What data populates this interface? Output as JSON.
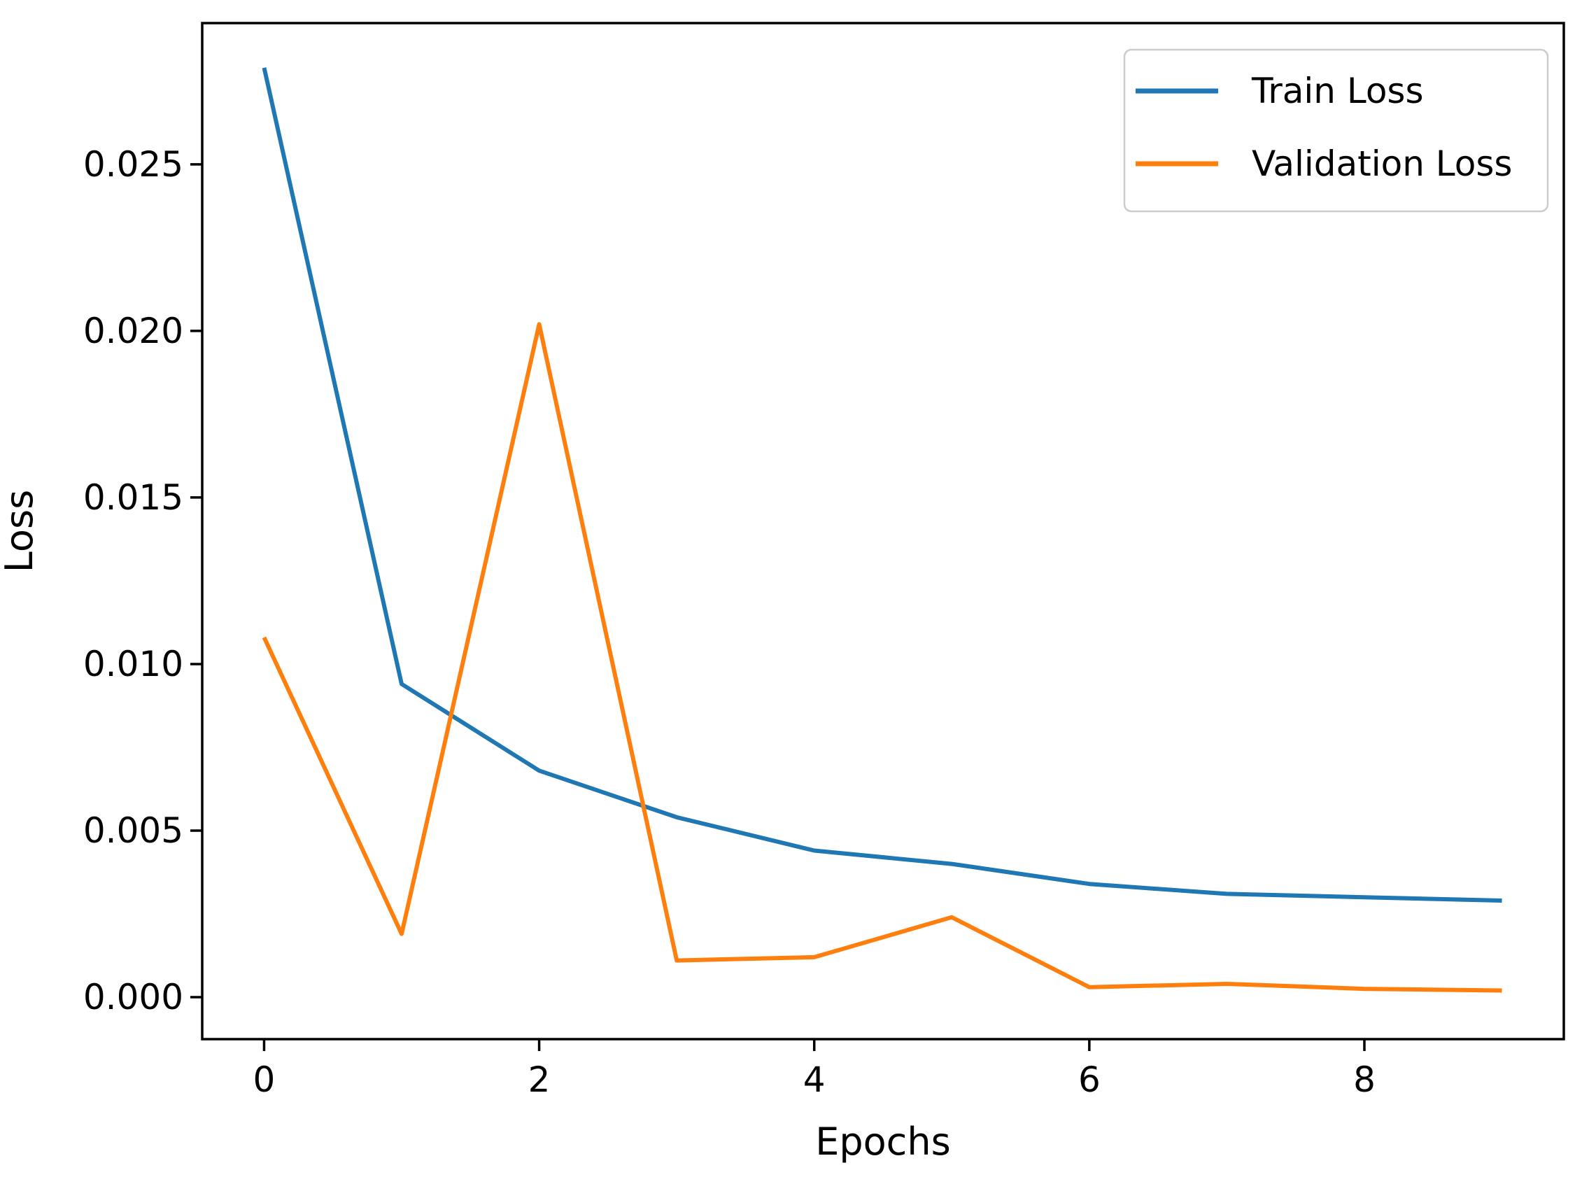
{
  "figure": {
    "background": "#ffffff"
  },
  "chart_data": {
    "type": "line",
    "title": "",
    "xlabel": "Epochs",
    "ylabel": "Loss",
    "x": [
      0,
      1,
      2,
      3,
      4,
      5,
      6,
      7,
      8,
      9
    ],
    "series": [
      {
        "name": "Train Loss",
        "color": "#1f77b4",
        "values": [
          0.0279,
          0.0094,
          0.0068,
          0.0054,
          0.0044,
          0.004,
          0.0034,
          0.0031,
          0.003,
          0.0029
        ]
      },
      {
        "name": "Validation Loss",
        "color": "#ff7f0e",
        "values": [
          0.0108,
          0.0019,
          0.0202,
          0.0011,
          0.0012,
          0.0024,
          0.0003,
          0.0004,
          0.00025,
          0.0002
        ]
      }
    ],
    "xlim": [
      -0.45,
      9.45
    ],
    "ylim": [
      -0.00126,
      0.02924
    ],
    "x_ticks": [
      0,
      2,
      4,
      6,
      8
    ],
    "x_tick_labels": [
      "0",
      "2",
      "4",
      "6",
      "8"
    ],
    "y_ticks": [
      0.0,
      0.005,
      0.01,
      0.015,
      0.02,
      0.025
    ],
    "y_tick_labels": [
      "0.000",
      "0.005",
      "0.010",
      "0.015",
      "0.020",
      "0.025"
    ],
    "grid": false,
    "legend": {
      "position": "upper right",
      "entries": [
        "Train Loss",
        "Validation Loss"
      ],
      "border_color": "#cccccc",
      "background": "#ffffff"
    },
    "axis_color": "#000000",
    "text_color": "#000000",
    "background": "#ffffff"
  }
}
